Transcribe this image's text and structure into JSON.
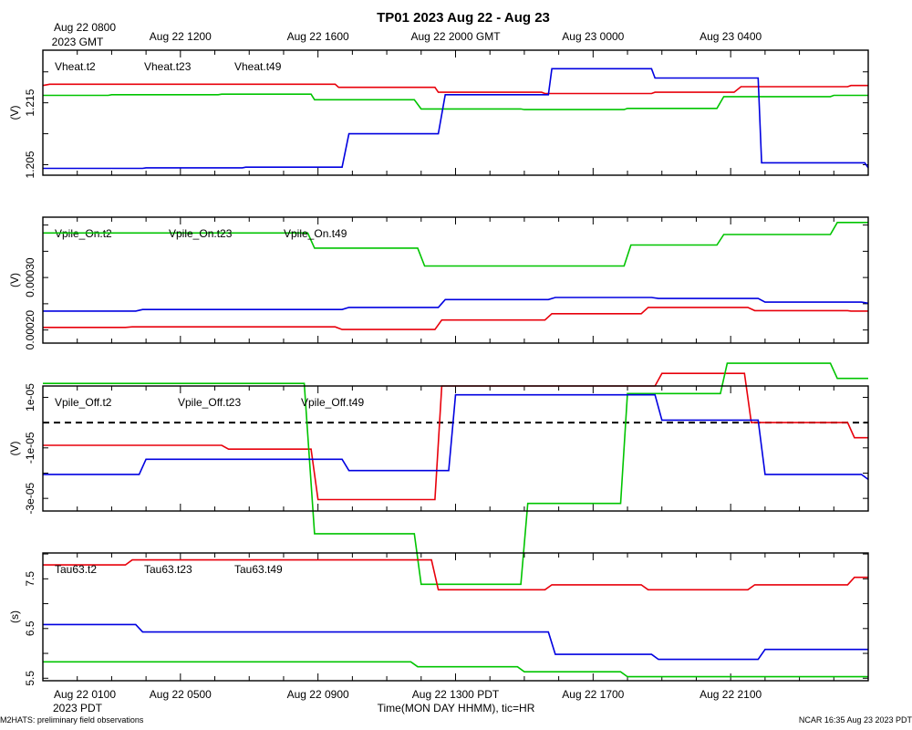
{
  "chart_data": {
    "type": "line",
    "title": "TP01 2023 Aug 22 - Aug 23",
    "top_axis": {
      "first_label_line1": "Aug 22 0800",
      "first_label_line2": "2023 GMT",
      "labels": [
        "Aug 22 1200",
        "Aug 22 1600",
        "Aug 22 2000 GMT",
        "Aug 23 0000",
        "Aug 23 0400"
      ]
    },
    "bottom_axis": {
      "first_label_line1": "Aug 22 0100",
      "first_label_line2": "2023 PDT",
      "labels": [
        "Aug 22 0500",
        "Aug 22 0900",
        "Aug 22 1300 PDT",
        "Aug 22 1700",
        "Aug 22 2100"
      ],
      "xlabel": "Time(MON DAY HHMM), tic=HR"
    },
    "xlim_hours": [
      0,
      24
    ],
    "footer_left": "M2HATS: preliminary field observations",
    "footer_right": "NCAR 16:35 Aug 23 2023 PDT",
    "colors": {
      "t2": "#e8000b",
      "t23": "#00c400",
      "t49": "#0000e0"
    },
    "panels": [
      {
        "name": "vheat",
        "ylabel": "(V)",
        "ylim": [
          1.2033,
          1.2235
        ],
        "yticks": [
          1.205,
          1.215
        ],
        "ytick_labels": [
          "1.205",
          "1.215"
        ],
        "zero_line": false,
        "series": [
          {
            "name": "Vheat.t2",
            "color": "#e8000b",
            "x": [
              0,
              0.2,
              8.5,
              8.6,
              11.4,
              11.5,
              14.5,
              14.6,
              17.7,
              17.8,
              20.1,
              20.3,
              23.4,
              23.5,
              24
            ],
            "y": [
              1.2178,
              1.218,
              1.218,
              1.2175,
              1.2175,
              1.2167,
              1.2167,
              1.2165,
              1.2165,
              1.2167,
              1.2167,
              1.2176,
              1.2176,
              1.2178,
              1.2178
            ]
          },
          {
            "name": "Vheat.t23",
            "color": "#00c400",
            "x": [
              0,
              1.9,
              2.0,
              5.1,
              5.2,
              7.8,
              7.9,
              10.8,
              11.0,
              13.9,
              14.0,
              16.9,
              17.0,
              19.6,
              19.8,
              22.9,
              23.0,
              24
            ],
            "y": [
              1.2162,
              1.2162,
              1.2163,
              1.2163,
              1.2164,
              1.2164,
              1.2155,
              1.2155,
              1.214,
              1.214,
              1.2139,
              1.2139,
              1.2141,
              1.2141,
              1.216,
              1.216,
              1.2162,
              1.2162
            ]
          },
          {
            "name": "Vheat.t49",
            "color": "#0000e0",
            "x": [
              0,
              2.9,
              3.0,
              5.8,
              5.9,
              8.7,
              8.9,
              11.5,
              11.7,
              14.7,
              14.8,
              17.7,
              17.8,
              20.8,
              20.9,
              23.9,
              24
            ],
            "y": [
              1.2044,
              1.2044,
              1.2045,
              1.2045,
              1.2046,
              1.2046,
              1.21,
              1.21,
              1.2163,
              1.2163,
              1.2205,
              1.2205,
              1.219,
              1.219,
              1.2053,
              1.2053,
              1.2045
            ]
          }
        ]
      },
      {
        "name": "vpile_on",
        "ylabel": "(V)",
        "ylim": [
          0.000175,
          0.000415
        ],
        "yticks": [
          0.0002,
          0.0003
        ],
        "ytick_labels": [
          "0.00020",
          "0.00030"
        ],
        "zero_line": false,
        "series": [
          {
            "name": "Vpile_On.t2",
            "color": "#e8000b",
            "x": [
              0,
              2.4,
              2.6,
              8.5,
              8.7,
              11.4,
              11.6,
              14.6,
              14.8,
              17.4,
              17.6,
              20.5,
              20.7,
              23.4,
              23.5,
              24
            ],
            "y": [
              0.000205,
              0.000205,
              0.000206,
              0.000206,
              0.000201,
              0.000201,
              0.000219,
              0.000219,
              0.000231,
              0.000231,
              0.000243,
              0.000243,
              0.000237,
              0.000237,
              0.000236,
              0.000236
            ]
          },
          {
            "name": "Vpile_On.t23",
            "color": "#00c400",
            "x": [
              0,
              7.7,
              7.9,
              10.9,
              11.1,
              16.9,
              17.1,
              19.6,
              19.8,
              22.9,
              23.1,
              24
            ],
            "y": [
              0.000385,
              0.000385,
              0.000356,
              0.000356,
              0.000322,
              0.000322,
              0.000362,
              0.000362,
              0.000382,
              0.000382,
              0.000405,
              0.000405
            ]
          },
          {
            "name": "Vpile_On.t49",
            "color": "#0000e0",
            "x": [
              0,
              2.7,
              2.9,
              8.7,
              8.9,
              11.5,
              11.7,
              14.7,
              14.9,
              17.7,
              17.9,
              20.8,
              21.0,
              23.8,
              24
            ],
            "y": [
              0.000236,
              0.000236,
              0.000239,
              0.000239,
              0.000243,
              0.000243,
              0.000258,
              0.000258,
              0.000262,
              0.000262,
              0.00026,
              0.00026,
              0.000253,
              0.000253,
              0.000251
            ]
          }
        ]
      },
      {
        "name": "vpile_off",
        "ylabel": "(V)",
        "ylim": [
          -3.5e-05,
          1.45e-05
        ],
        "yticks": [
          -3e-05,
          -1e-05,
          1e-05
        ],
        "ytick_labels": [
          "-3e-05",
          "-1e-05",
          "1e-05"
        ],
        "zero_line": true,
        "series": [
          {
            "name": "Vpile_Off.t2",
            "color": "#e8000b",
            "x": [
              0,
              5.2,
              5.4,
              7.8,
              8.0,
              11.4,
              11.6,
              17.8,
              18.0,
              20.4,
              20.6,
              23.4,
              23.6,
              24
            ],
            "y": [
              -9e-06,
              -9e-06,
              -1.05e-05,
              -1.05e-05,
              -3.05e-05,
              -3.05e-05,
              1.45e-05,
              1.45e-05,
              1.95e-05,
              1.95e-05,
              0.0,
              0.0,
              -6e-06,
              -6e-06
            ]
          },
          {
            "name": "Vpile_Off.t23",
            "color": "#00c400",
            "x": [
              0,
              7.6,
              7.9,
              10.8,
              11.0,
              13.9,
              14.1,
              16.8,
              17.0,
              19.7,
              19.9,
              22.9,
              23.1,
              24
            ],
            "y": [
              1.55e-05,
              1.55e-05,
              -4.4e-05,
              -4.4e-05,
              -6.4e-05,
              -6.4e-05,
              -3.2e-05,
              -3.2e-05,
              1.15e-05,
              1.15e-05,
              2.35e-05,
              2.35e-05,
              1.75e-05,
              1.75e-05
            ]
          },
          {
            "name": "Vpile_Off.t49",
            "color": "#0000e0",
            "x": [
              0,
              2.8,
              3.0,
              8.7,
              8.9,
              11.8,
              12.0,
              17.8,
              18.0,
              20.8,
              21.0,
              23.8,
              24
            ],
            "y": [
              -2.05e-05,
              -2.05e-05,
              -1.45e-05,
              -1.45e-05,
              -1.9e-05,
              -1.9e-05,
              1.1e-05,
              1.1e-05,
              1e-06,
              1e-06,
              -2.05e-05,
              -2.05e-05,
              -2.25e-05
            ]
          }
        ]
      },
      {
        "name": "tau63",
        "ylabel": "(s)",
        "ylim": [
          5.45,
          8.02
        ],
        "yticks": [
          5.5,
          6.5,
          7.5
        ],
        "ytick_labels": [
          "5.5",
          "6.5",
          "7.5"
        ],
        "zero_line": false,
        "series": [
          {
            "name": "Tau63.t2",
            "color": "#e8000b",
            "x": [
              0,
              2.4,
              2.6,
              11.3,
              11.5,
              14.6,
              14.8,
              17.4,
              17.6,
              20.5,
              20.7,
              23.4,
              23.6,
              24
            ],
            "y": [
              7.78,
              7.78,
              7.88,
              7.88,
              7.28,
              7.28,
              7.38,
              7.38,
              7.28,
              7.28,
              7.38,
              7.38,
              7.53,
              7.53
            ]
          },
          {
            "name": "Tau63.t23",
            "color": "#00c400",
            "x": [
              0,
              2.7,
              2.9,
              10.7,
              10.9,
              13.8,
              14.0,
              16.8,
              17.0,
              24
            ],
            "y": [
              5.83,
              5.83,
              5.83,
              5.83,
              5.73,
              5.73,
              5.63,
              5.63,
              5.53,
              5.53
            ]
          },
          {
            "name": "Tau63.t49",
            "color": "#0000e0",
            "x": [
              0,
              2.7,
              2.9,
              8.8,
              9.0,
              14.7,
              14.9,
              17.7,
              17.9,
              20.8,
              21.0,
              24
            ],
            "y": [
              6.58,
              6.58,
              6.43,
              6.43,
              6.43,
              6.43,
              5.98,
              5.98,
              5.88,
              5.88,
              6.08,
              6.08
            ]
          }
        ]
      }
    ]
  }
}
